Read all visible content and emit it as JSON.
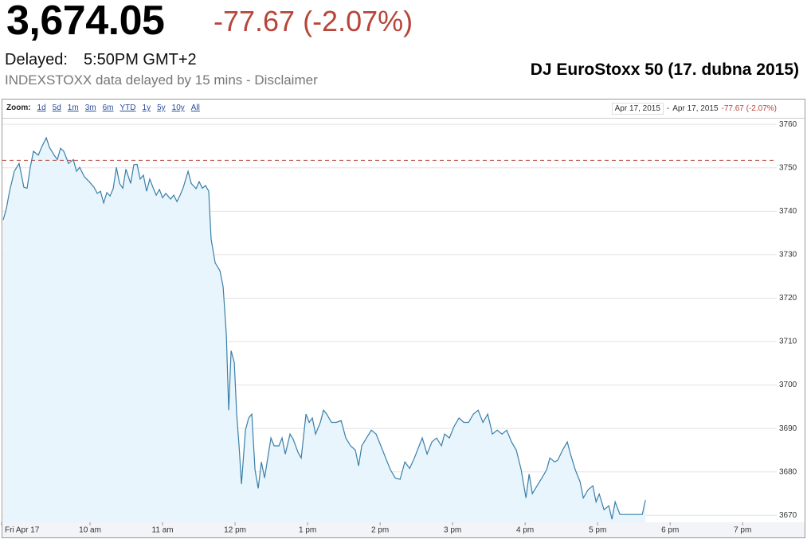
{
  "header": {
    "price": "3,674.05",
    "change": "-77.67 (-2.07%)",
    "delayed_label": "Delayed:",
    "delayed_time": "5:50PM GMT+2",
    "source_note": "INDEXSTOXX data delayed by 15 mins - Disclaimer",
    "caption": "DJ EuroStoxx 50 (17. dubna 2015)"
  },
  "toolbar": {
    "zoom_label": "Zoom:",
    "zoom_options": [
      "1d",
      "5d",
      "1m",
      "3m",
      "6m",
      "YTD",
      "1y",
      "5y",
      "10y",
      "All"
    ],
    "date_from": "Apr 17, 2015",
    "date_separator": "-",
    "date_to": "Apr 17, 2015",
    "range_change": "-77.67 (-2.07%)"
  },
  "chart_data": {
    "type": "line",
    "color": "#3a7fa8",
    "fill_color": "#e9f5fc",
    "x": [
      8.802,
      8.846,
      8.89,
      8.956,
      9.022,
      9.088,
      9.132,
      9.176,
      9.22,
      9.286,
      9.33,
      9.396,
      9.44,
      9.505,
      9.549,
      9.593,
      9.637,
      9.703,
      9.769,
      9.813,
      9.857,
      9.923,
      9.989,
      10.055,
      10.099,
      10.143,
      10.187,
      10.231,
      10.275,
      10.319,
      10.363,
      10.407,
      10.451,
      10.495,
      10.56,
      10.604,
      10.648,
      10.692,
      10.736,
      10.78,
      10.824,
      10.868,
      10.912,
      10.956,
      11.0,
      11.044,
      11.11,
      11.154,
      11.198,
      11.242,
      11.286,
      11.352,
      11.396,
      11.462,
      11.505,
      11.549,
      11.593,
      11.637,
      11.67,
      11.725,
      11.791,
      11.835,
      11.879,
      11.912,
      11.945,
      11.989,
      12.022,
      12.055,
      12.088,
      12.143,
      12.187,
      12.231,
      12.275,
      12.319,
      12.363,
      12.407,
      12.451,
      12.495,
      12.538,
      12.604,
      12.648,
      12.692,
      12.758,
      12.802,
      12.868,
      12.912,
      12.978,
      13.022,
      13.066,
      13.11,
      13.176,
      13.22,
      13.264,
      13.33,
      13.396,
      13.462,
      13.527,
      13.593,
      13.659,
      13.703,
      13.747,
      13.813,
      13.879,
      13.945,
      14.011,
      14.077,
      14.143,
      14.209,
      14.275,
      14.341,
      14.407,
      14.473,
      14.538,
      14.582,
      14.648,
      14.714,
      14.78,
      14.846,
      14.89,
      14.956,
      15.022,
      15.088,
      15.154,
      15.22,
      15.286,
      15.352,
      15.418,
      15.484,
      15.549,
      15.615,
      15.681,
      15.747,
      15.813,
      15.879,
      15.945,
      16.011,
      16.055,
      16.099,
      16.165,
      16.231,
      16.297,
      16.341,
      16.407,
      16.451,
      16.516,
      16.582,
      16.626,
      16.692,
      16.758,
      16.802,
      16.868,
      16.934,
      16.978,
      17.022,
      17.088,
      17.154,
      17.198,
      17.242,
      17.308,
      17.44,
      17.615,
      17.659
    ],
    "values": [
      3738.0,
      3740.6,
      3744.6,
      3749.2,
      3751.0,
      3745.5,
      3745.3,
      3750.1,
      3753.8,
      3752.9,
      3754.7,
      3756.9,
      3754.7,
      3752.9,
      3751.9,
      3754.5,
      3753.8,
      3751.0,
      3751.9,
      3749.2,
      3750.1,
      3747.9,
      3746.8,
      3745.5,
      3744.1,
      3744.6,
      3741.9,
      3744.3,
      3743.5,
      3745.2,
      3750.1,
      3746.4,
      3745.3,
      3749.7,
      3746.4,
      3750.7,
      3750.8,
      3747.4,
      3748.3,
      3744.6,
      3747.4,
      3745.5,
      3743.7,
      3745.0,
      3743.1,
      3744.1,
      3742.8,
      3743.7,
      3742.2,
      3743.7,
      3745.5,
      3749.2,
      3746.4,
      3745.2,
      3746.8,
      3745.3,
      3745.9,
      3744.6,
      3733.6,
      3728.1,
      3726.3,
      3722.6,
      3711.6,
      3694.2,
      3707.9,
      3705.2,
      3693.3,
      3686.0,
      3677.2,
      3689.6,
      3692.4,
      3693.3,
      3680.5,
      3676.2,
      3682.3,
      3678.6,
      3683.2,
      3687.8,
      3686.0,
      3686.0,
      3687.8,
      3684.1,
      3688.7,
      3687.5,
      3684.5,
      3683.2,
      3693.3,
      3691.4,
      3692.4,
      3688.7,
      3691.4,
      3694.2,
      3693.3,
      3691.4,
      3691.4,
      3691.8,
      3687.8,
      3686.0,
      3685.0,
      3681.4,
      3686.0,
      3687.8,
      3689.6,
      3688.7,
      3686.0,
      3683.2,
      3680.5,
      3678.6,
      3678.3,
      3682.3,
      3680.8,
      3683.2,
      3686.0,
      3687.8,
      3684.1,
      3686.9,
      3687.8,
      3686.0,
      3688.7,
      3687.8,
      3690.5,
      3692.4,
      3691.4,
      3691.4,
      3693.3,
      3694.2,
      3691.4,
      3693.3,
      3688.7,
      3689.6,
      3688.7,
      3689.6,
      3686.9,
      3685.0,
      3680.5,
      3674.0,
      3679.5,
      3675.0,
      3676.8,
      3678.6,
      3680.5,
      3683.2,
      3682.3,
      3682.7,
      3685.0,
      3686.9,
      3684.1,
      3680.5,
      3677.7,
      3674.0,
      3675.9,
      3676.8,
      3673.1,
      3674.9,
      3671.3,
      3672.2,
      3669.1,
      3673.1,
      3670.2,
      3670.2,
      3670.2,
      3673.5
    ],
    "previous_close": 3751.72,
    "previous_close_color": "#b8453a",
    "xlim": [
      8.78,
      19.47
    ],
    "xticks": [
      {
        "value": 8.78,
        "label": "Fri Apr 17"
      },
      {
        "value": 10,
        "label": "10 am"
      },
      {
        "value": 11,
        "label": "11 am"
      },
      {
        "value": 12,
        "label": "12 pm"
      },
      {
        "value": 13,
        "label": "1 pm"
      },
      {
        "value": 14,
        "label": "2 pm"
      },
      {
        "value": 15,
        "label": "3 pm"
      },
      {
        "value": 16,
        "label": "4 pm"
      },
      {
        "value": 17,
        "label": "5 pm"
      },
      {
        "value": 18,
        "label": "6 pm"
      },
      {
        "value": 19,
        "label": "7 pm"
      }
    ],
    "ylim": [
      3668.4,
      3761.5
    ],
    "yticks": [
      3670,
      3680,
      3690,
      3700,
      3710,
      3720,
      3730,
      3740,
      3750,
      3760
    ],
    "grid": true
  }
}
